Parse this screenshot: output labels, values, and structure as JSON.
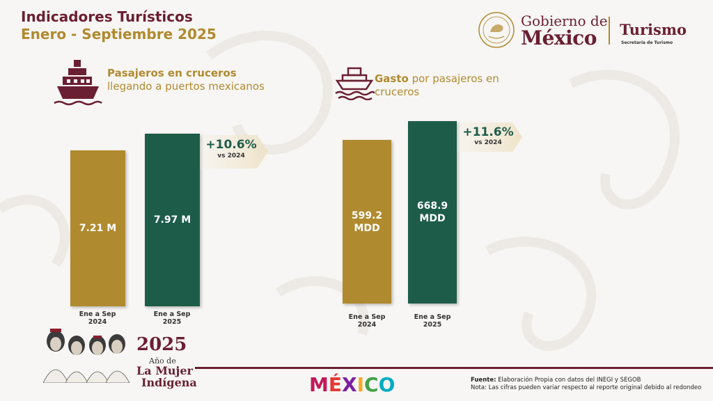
{
  "header": {
    "title_line1": "Indicadores Turísticos",
    "title_line2": "Enero - Septiembre 2025"
  },
  "logo": {
    "gobierno_line1": "Gobierno de",
    "gobierno_line2": "México",
    "turismo": "Turismo",
    "secretaria": "Secretaría de Turismo"
  },
  "panels": [
    {
      "title_bold": "Pasajeros en cruceros",
      "title_rest": " llegando a puertos mexicanos",
      "icon": "cruise-ship-icon",
      "badge_pct": "+10.6%",
      "badge_vs": "vs 2024"
    },
    {
      "title_bold": "Gasto",
      "title_rest": " por pasajeros en cruceros",
      "icon": "boat-waves-icon",
      "badge_pct": "+11.6%",
      "badge_vs": "vs 2024"
    }
  ],
  "chart_data": [
    {
      "type": "bar",
      "title": "Pasajeros en cruceros llegando a puertos mexicanos",
      "categories": [
        "Ene a Sep 2024",
        "Ene a Sep 2025"
      ],
      "values": [
        7.21,
        7.97
      ],
      "value_labels": [
        "7.21 M",
        "7.97 M"
      ],
      "units": "M",
      "colors": [
        "#b08a2e",
        "#1e5c4a"
      ],
      "change": "+10.6%",
      "change_label": "vs 2024"
    },
    {
      "type": "bar",
      "title": "Gasto por pasajeros en cruceros",
      "categories": [
        "Ene a Sep 2024",
        "Ene a Sep 2025"
      ],
      "values": [
        599.2,
        668.9
      ],
      "value_labels": [
        "599.2 MDD",
        "668.9 MDD"
      ],
      "units": "MDD",
      "colors": [
        "#b08a2e",
        "#1e5c4a"
      ],
      "change": "+11.6%",
      "change_label": "vs 2024"
    }
  ],
  "categories_split": [
    [
      "Ene a Sep",
      "2024"
    ],
    [
      "Ene a Sep",
      "2025"
    ]
  ],
  "bar_labels": {
    "p1b1": "7.21 M",
    "p1b2": "7.97 M",
    "p2b1_a": "599.2",
    "p2b1_b": "MDD",
    "p2b2_a": "668.9",
    "p2b2_b": "MDD"
  },
  "footer": {
    "year": "2025",
    "year_sub1": "Año de",
    "year_sub2": "La Mujer",
    "year_sub3": "Indígena",
    "brand": "MÉXICO",
    "source_label": "Fuente:",
    "source_text": " Elaboración Propia con datos del INEGI y SEGOB",
    "note": "Nota: Las cifras pueden variar respecto al reporte original debido al redondeo"
  },
  "colors": {
    "maroon": "#6b1f32",
    "gold": "#b08a2e",
    "green": "#1e5c4a"
  }
}
